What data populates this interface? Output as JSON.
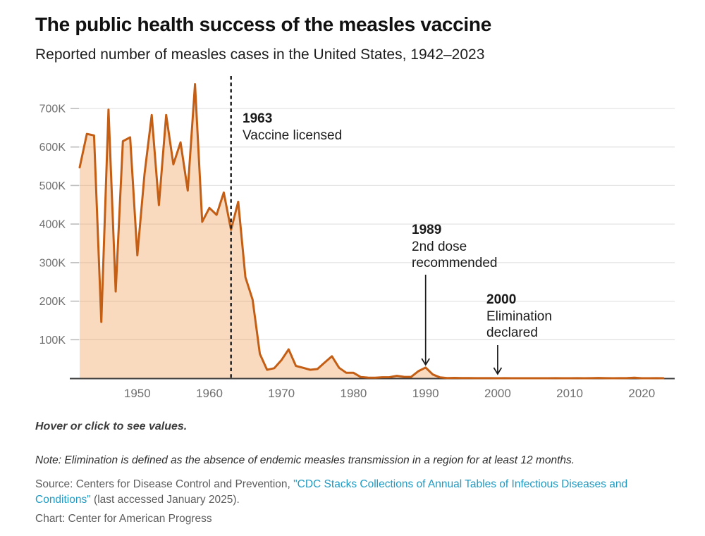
{
  "header": {
    "title": "The public health success of the measles vaccine",
    "subtitle": "Reported number of measles cases in the United States, 1942–2023"
  },
  "chart_data": {
    "type": "area",
    "title": "The public health success of the measles vaccine",
    "subtitle": "Reported number of measles cases in the United States, 1942–2023",
    "series_name": "Reported measles cases",
    "xlabel": "",
    "ylabel": "",
    "xlim": [
      1942,
      2023
    ],
    "ylim": [
      0,
      763000
    ],
    "grid": "horizontal",
    "legend": "none",
    "x_ticks": [
      1950,
      1960,
      1970,
      1980,
      1990,
      2000,
      2010,
      2020
    ],
    "y_ticks": [
      {
        "value": 100000,
        "label": "100K"
      },
      {
        "value": 200000,
        "label": "200K"
      },
      {
        "value": 300000,
        "label": "300K"
      },
      {
        "value": 400000,
        "label": "400K"
      },
      {
        "value": 500000,
        "label": "500K"
      },
      {
        "value": 600000,
        "label": "600K"
      },
      {
        "value": 700000,
        "label": "700K"
      }
    ],
    "x": [
      1942,
      1943,
      1944,
      1945,
      1946,
      1947,
      1948,
      1949,
      1950,
      1951,
      1952,
      1953,
      1954,
      1955,
      1956,
      1957,
      1958,
      1959,
      1960,
      1961,
      1962,
      1963,
      1964,
      1965,
      1966,
      1967,
      1968,
      1969,
      1970,
      1971,
      1972,
      1973,
      1974,
      1975,
      1976,
      1977,
      1978,
      1979,
      1980,
      1981,
      1982,
      1983,
      1984,
      1985,
      1986,
      1987,
      1988,
      1989,
      1990,
      1991,
      1992,
      1993,
      1994,
      1995,
      1996,
      1997,
      1998,
      1999,
      2000,
      2001,
      2002,
      2003,
      2004,
      2005,
      2006,
      2007,
      2008,
      2009,
      2010,
      2011,
      2012,
      2013,
      2014,
      2015,
      2016,
      2017,
      2018,
      2019,
      2020,
      2021,
      2022,
      2023
    ],
    "values": [
      547000,
      634000,
      630000,
      146000,
      697000,
      225000,
      615000,
      625000,
      319000,
      530000,
      683000,
      449000,
      683000,
      555000,
      612000,
      487000,
      763000,
      406000,
      442000,
      424000,
      482000,
      385000,
      458000,
      262000,
      204000,
      63000,
      22000,
      26000,
      47000,
      75000,
      32000,
      27000,
      22000,
      24000,
      41000,
      57000,
      27000,
      14000,
      14000,
      3100,
      1700,
      1500,
      2600,
      2800,
      6300,
      3700,
      3400,
      18200,
      27800,
      9600,
      2200,
      300,
      1000,
      300,
      500,
      140,
      100,
      100,
      86,
      116,
      44,
      56,
      37,
      66,
      55,
      43,
      140,
      71,
      63,
      220,
      55,
      187,
      667,
      188,
      86,
      120,
      372,
      1282,
      13,
      49,
      121,
      58
    ],
    "annotations": [
      {
        "year": 1963,
        "marker": "dashed-vertical-line",
        "title": "1963",
        "lines": [
          "Vaccine licensed"
        ]
      },
      {
        "year": 1990,
        "marker": "arrow",
        "title": "1989",
        "lines": [
          "2nd dose",
          "recommended"
        ]
      },
      {
        "year": 2000,
        "marker": "arrow",
        "title": "2000",
        "lines": [
          "Elimination",
          "declared"
        ]
      }
    ],
    "colors": {
      "line": "#c45e14",
      "area_fill": "rgba(240,144,60,0.33)",
      "gridline": "#e3e3e3",
      "tick": "#bdbdbd",
      "axis_line": "#3d3d3d",
      "axis_label": "#6f6f6f",
      "annotation_ink": "#1a1a1a"
    }
  },
  "footer": {
    "hover_note": "Hover or click to see values.",
    "note": "Note: Elimination is defined as the absence of endemic measles transmission in a region for at least 12 months.",
    "source_prefix": "Source: Centers for Disease Control and Prevention, ",
    "source_link": "\"CDC Stacks Collections of Annual Tables of Infectious Diseases and Conditions\"",
    "source_suffix": " (last accessed January 2025).",
    "credit": "Chart: Center for American Progress"
  }
}
